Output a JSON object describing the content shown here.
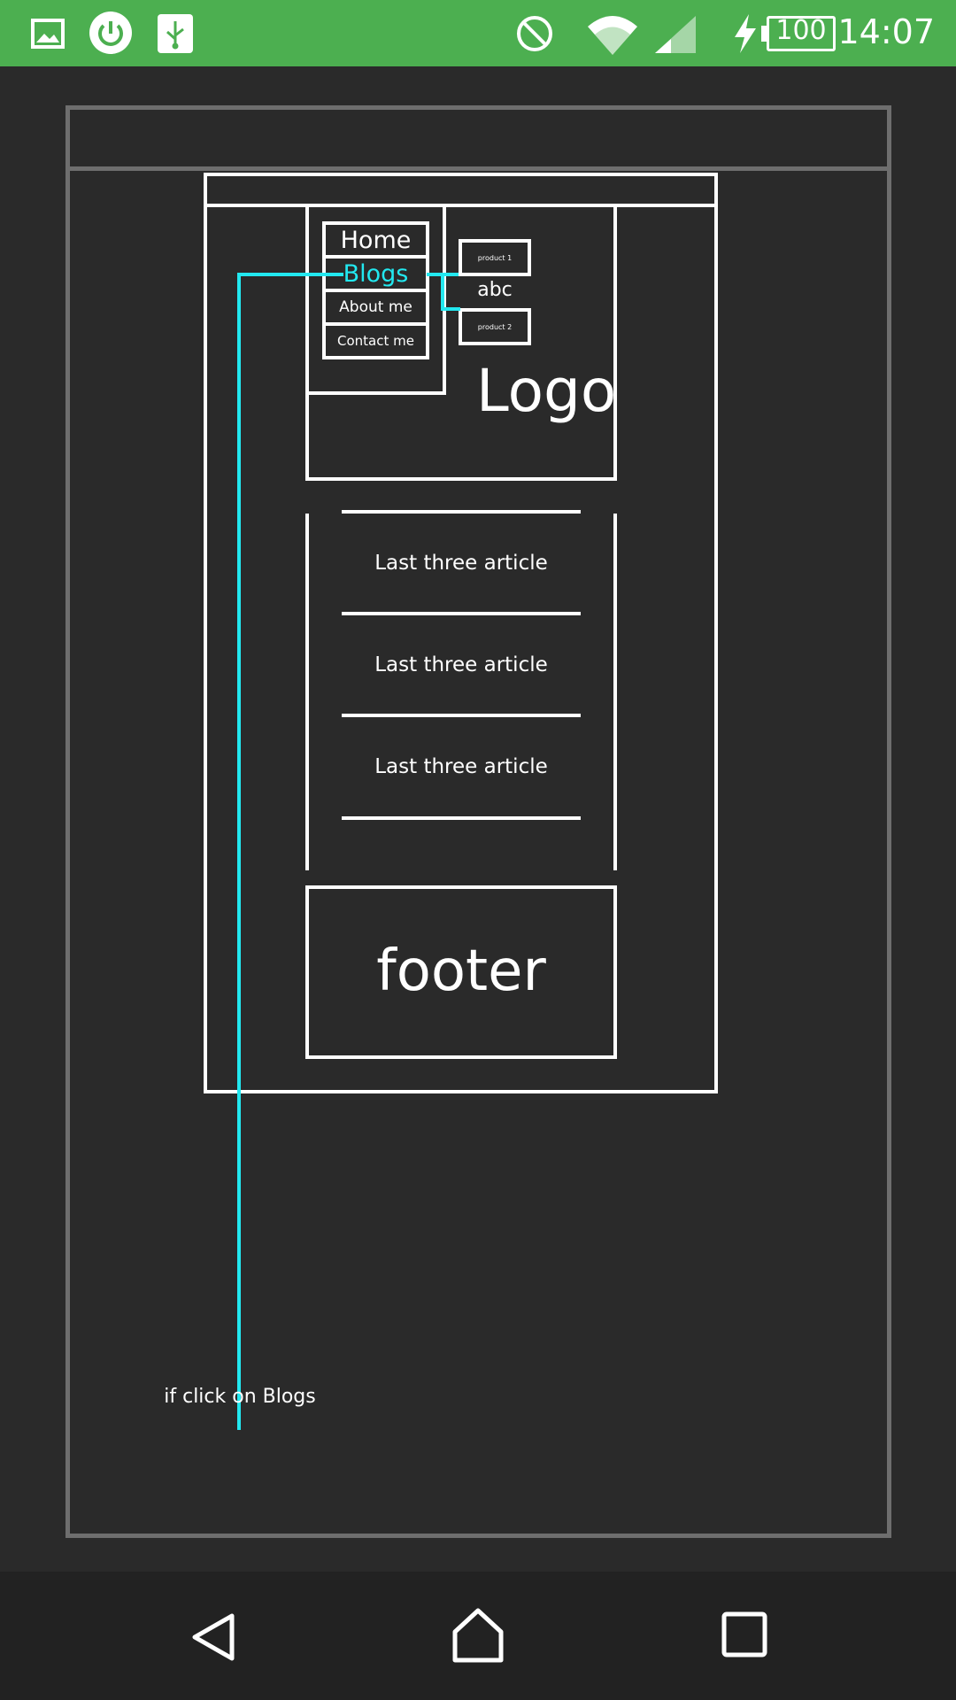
{
  "status_bar": {
    "time": "14:07",
    "battery_level": "100",
    "background_color": "#4caf50",
    "icons": [
      "image-icon",
      "power-icon",
      "usb-icon",
      "do-not-disturb-icon",
      "wifi-icon",
      "cell-signal-icon",
      "charging-icon",
      "battery-icon"
    ]
  },
  "wireframe": {
    "accent_color": "#22e8f0",
    "nav_menu": {
      "items": [
        "Home",
        "Blogs",
        "About me",
        "Contact me"
      ],
      "highlighted_item": "Blogs"
    },
    "submenu": {
      "items": [
        "product 1",
        "product 2"
      ],
      "label": "abc"
    },
    "logo_text": "Logo",
    "articles": [
      "Last three article",
      "Last three article",
      "Last three article"
    ],
    "footer_text": "footer",
    "annotation": "if click on Blogs"
  },
  "nav_bar": {
    "buttons": [
      "back-icon",
      "home-icon",
      "recents-icon"
    ]
  }
}
